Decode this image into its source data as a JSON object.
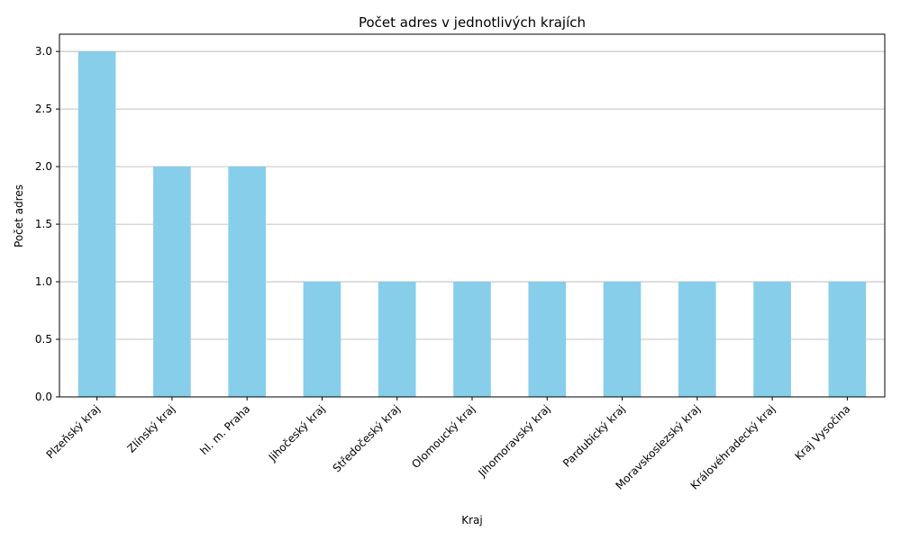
{
  "chart_data": {
    "type": "bar",
    "title": "Počet adres v jednotlivých krajích",
    "xlabel": "Kraj",
    "ylabel": "Počet adres",
    "categories": [
      "Plzeňský kraj",
      "Zlínský kraj",
      "hl. m. Praha",
      "Jihočeský kraj",
      "Středočeský kraj",
      "Olomoucký kraj",
      "Jihomoravský kraj",
      "Pardubický kraj",
      "Moravskoslezský kraj",
      "Královéhradecký kraj",
      "Kraj Vysočina"
    ],
    "values": [
      3,
      2,
      2,
      1,
      1,
      1,
      1,
      1,
      1,
      1,
      1
    ],
    "ylim": [
      0,
      3.15
    ],
    "yticks": [
      "0.0",
      "0.5",
      "1.0",
      "1.5",
      "2.0",
      "2.5",
      "3.0"
    ],
    "grid": "horizontal",
    "bar_color": "#87ceeb",
    "grid_color": "#b0b0b0"
  }
}
